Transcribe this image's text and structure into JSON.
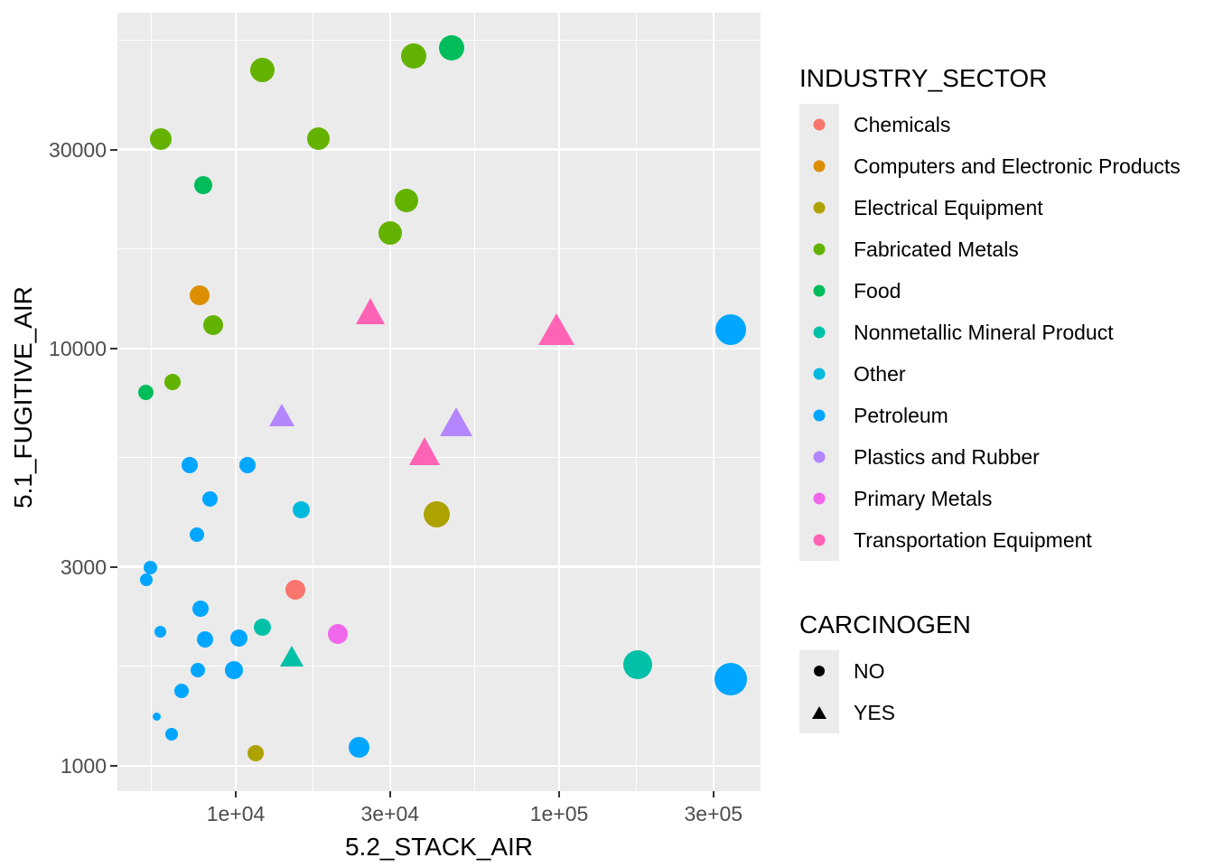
{
  "chart_data": {
    "type": "scatter",
    "title": "",
    "xlabel": "5.2_STACK_AIR",
    "ylabel": "5.1_FUGITIVE_AIR",
    "x_scale": "log10",
    "y_scale": "log10",
    "x_range": [
      4300,
      420000
    ],
    "y_range": [
      870,
      63800
    ],
    "grid": true,
    "style": {
      "panel_bg": "#EBEBEB",
      "grid_color": "#FFFFFF",
      "tick_label_color": "#4D4D4D",
      "tick_mark_color": "#333333",
      "text_color": "#000000"
    },
    "x_ticks": [
      {
        "label": "1e+04",
        "value": 10000
      },
      {
        "label": "3e+04",
        "value": 30000
      },
      {
        "label": "1e+05",
        "value": 100000
      },
      {
        "label": "3e+05",
        "value": 300000
      }
    ],
    "y_ticks": [
      {
        "label": "1000",
        "value": 1000
      },
      {
        "label": "3000",
        "value": 3000
      },
      {
        "label": "10000",
        "value": 10000
      },
      {
        "label": "30000",
        "value": 30000
      }
    ],
    "legend_sector": {
      "title": "INDUSTRY_SECTOR",
      "entries": [
        {
          "label": "Chemicals",
          "color": "#F8766D"
        },
        {
          "label": "Computers and Electronic Products",
          "color": "#DB8E00"
        },
        {
          "label": "Electrical Equipment",
          "color": "#AEA200"
        },
        {
          "label": "Fabricated Metals",
          "color": "#64B200"
        },
        {
          "label": "Food",
          "color": "#00BD5C"
        },
        {
          "label": "Nonmetallic Mineral Product",
          "color": "#00C1A7"
        },
        {
          "label": "Other",
          "color": "#00BADE"
        },
        {
          "label": "Petroleum",
          "color": "#00A6FF"
        },
        {
          "label": "Plastics and Rubber",
          "color": "#B385FF"
        },
        {
          "label": "Primary Metals",
          "color": "#EF67EB"
        },
        {
          "label": "Transportation Equipment",
          "color": "#FF63B6"
        }
      ]
    },
    "legend_carcinogen": {
      "title": "CARCINOGEN",
      "entries": [
        {
          "label": "NO",
          "shape": "circle"
        },
        {
          "label": "YES",
          "shape": "triangle"
        }
      ]
    },
    "points": [
      {
        "sector": "Fabricated Metals",
        "carcinogen": "NO",
        "x": 12100,
        "y": 46600,
        "r": 13.5
      },
      {
        "sector": "Fabricated Metals",
        "carcinogen": "NO",
        "x": 35500,
        "y": 50300,
        "r": 14
      },
      {
        "sector": "Food",
        "carcinogen": "NO",
        "x": 46500,
        "y": 52600,
        "r": 14
      },
      {
        "sector": "Fabricated Metals",
        "carcinogen": "NO",
        "x": 5860,
        "y": 31800,
        "r": 12
      },
      {
        "sector": "Fabricated Metals",
        "carcinogen": "NO",
        "x": 18000,
        "y": 31800,
        "r": 12.5
      },
      {
        "sector": "Food",
        "carcinogen": "NO",
        "x": 7930,
        "y": 24700,
        "r": 10
      },
      {
        "sector": "Fabricated Metals",
        "carcinogen": "NO",
        "x": 33700,
        "y": 22700,
        "r": 13
      },
      {
        "sector": "Fabricated Metals",
        "carcinogen": "NO",
        "x": 30000,
        "y": 18900,
        "r": 13
      },
      {
        "sector": "Computers and Electronic Products",
        "carcinogen": "NO",
        "x": 7730,
        "y": 13400,
        "r": 11
      },
      {
        "sector": "Fabricated Metals",
        "carcinogen": "NO",
        "x": 8510,
        "y": 11400,
        "r": 11
      },
      {
        "sector": "Transportation Equipment",
        "carcinogen": "YES",
        "x": 26100,
        "y": 12300,
        "r": 16.5
      },
      {
        "sector": "Fabricated Metals",
        "carcinogen": "NO",
        "x": 6380,
        "y": 8310,
        "r": 9
      },
      {
        "sector": "Food",
        "carcinogen": "NO",
        "x": 5290,
        "y": 7870,
        "r": 8.5
      },
      {
        "sector": "Plastics and Rubber",
        "carcinogen": "YES",
        "x": 13900,
        "y": 6920,
        "r": 14.5
      },
      {
        "sector": "Transportation Equipment",
        "carcinogen": "YES",
        "x": 38400,
        "y": 5670,
        "r": 17.5
      },
      {
        "sector": "Plastics and Rubber",
        "carcinogen": "YES",
        "x": 48000,
        "y": 6680,
        "r": 18
      },
      {
        "sector": "Petroleum",
        "carcinogen": "NO",
        "x": 7200,
        "y": 5260,
        "r": 9
      },
      {
        "sector": "Petroleum",
        "carcinogen": "NO",
        "x": 10900,
        "y": 5260,
        "r": 9
      },
      {
        "sector": "Petroleum",
        "carcinogen": "NO",
        "x": 8350,
        "y": 4370,
        "r": 8.5
      },
      {
        "sector": "Other",
        "carcinogen": "NO",
        "x": 15900,
        "y": 4100,
        "r": 9.5
      },
      {
        "sector": "Petroleum",
        "carcinogen": "NO",
        "x": 7590,
        "y": 3580,
        "r": 8
      },
      {
        "sector": "Electrical Equipment",
        "carcinogen": "NO",
        "x": 41700,
        "y": 4000,
        "r": 14.5
      },
      {
        "sector": "Petroleum",
        "carcinogen": "NO",
        "x": 5460,
        "y": 2990,
        "r": 7.5
      },
      {
        "sector": "Petroleum",
        "carcinogen": "NO",
        "x": 5290,
        "y": 2790,
        "r": 7
      },
      {
        "sector": "Petroleum",
        "carcinogen": "NO",
        "x": 7780,
        "y": 2380,
        "r": 9
      },
      {
        "sector": "Chemicals",
        "carcinogen": "NO",
        "x": 15300,
        "y": 2640,
        "r": 11
      },
      {
        "sector": "Nonmetallic Mineral Product",
        "carcinogen": "NO",
        "x": 12100,
        "y": 2150,
        "r": 9.5
      },
      {
        "sector": "Petroleum",
        "carcinogen": "NO",
        "x": 5830,
        "y": 2100,
        "r": 6.5
      },
      {
        "sector": "Petroleum",
        "carcinogen": "NO",
        "x": 8040,
        "y": 2010,
        "r": 9
      },
      {
        "sector": "Petroleum",
        "carcinogen": "NO",
        "x": 10200,
        "y": 2020,
        "r": 9.5
      },
      {
        "sector": "Primary Metals",
        "carcinogen": "NO",
        "x": 20700,
        "y": 2070,
        "r": 11
      },
      {
        "sector": "Nonmetallic Mineral Product",
        "carcinogen": "YES",
        "x": 14900,
        "y": 1830,
        "r": 13
      },
      {
        "sector": "Petroleum",
        "carcinogen": "NO",
        "x": 7630,
        "y": 1700,
        "r": 8
      },
      {
        "sector": "Petroleum",
        "carcinogen": "NO",
        "x": 9870,
        "y": 1700,
        "r": 10
      },
      {
        "sector": "Petroleum",
        "carcinogen": "NO",
        "x": 6800,
        "y": 1510,
        "r": 8
      },
      {
        "sector": "Petroleum",
        "carcinogen": "NO",
        "x": 5680,
        "y": 1310,
        "r": 4.5
      },
      {
        "sector": "Petroleum",
        "carcinogen": "NO",
        "x": 6340,
        "y": 1190,
        "r": 7
      },
      {
        "sector": "Electrical Equipment",
        "carcinogen": "NO",
        "x": 11500,
        "y": 1070,
        "r": 9
      },
      {
        "sector": "Petroleum",
        "carcinogen": "NO",
        "x": 24000,
        "y": 1110,
        "r": 11.5
      },
      {
        "sector": "Transportation Equipment",
        "carcinogen": "YES",
        "x": 98100,
        "y": 11100,
        "r": 20
      },
      {
        "sector": "Petroleum",
        "carcinogen": "NO",
        "x": 340000,
        "y": 11100,
        "r": 17
      },
      {
        "sector": "Nonmetallic Mineral Product",
        "carcinogen": "NO",
        "x": 175000,
        "y": 1750,
        "r": 16
      },
      {
        "sector": "Petroleum",
        "carcinogen": "NO",
        "x": 340000,
        "y": 1610,
        "r": 18
      }
    ]
  }
}
